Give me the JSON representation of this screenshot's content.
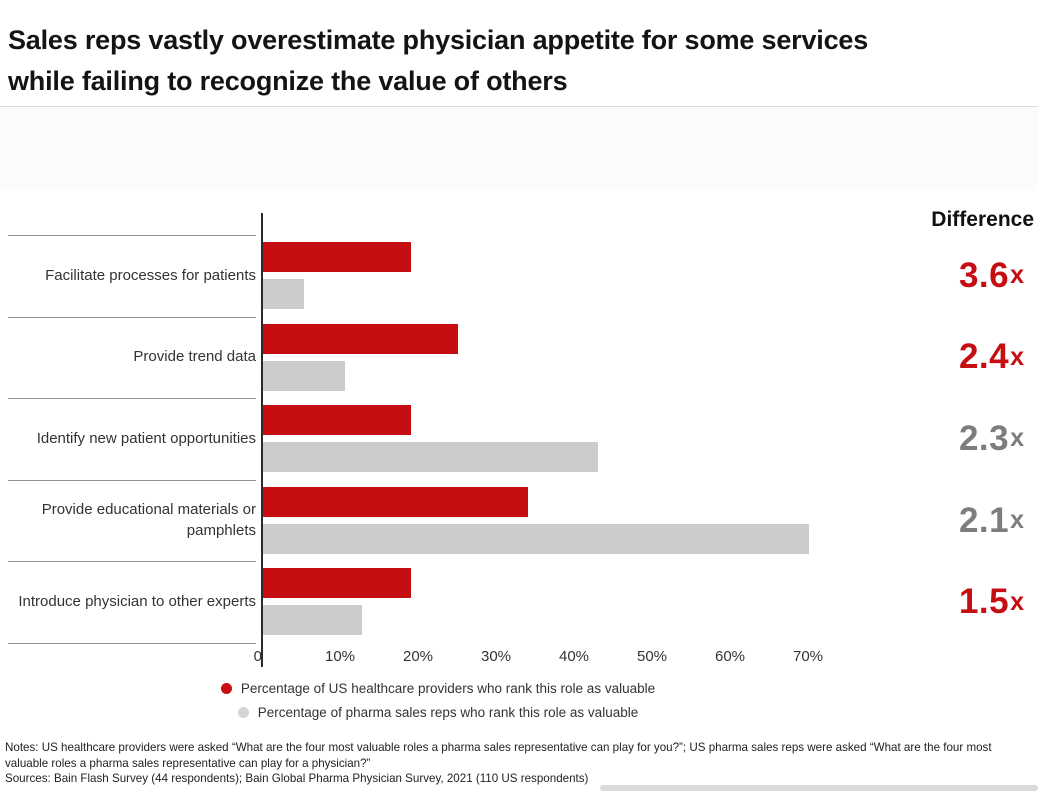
{
  "title": {
    "line1": "Sales reps vastly overestimate physician appetite for some services",
    "line2": "while failing to recognize the value of others"
  },
  "chart_data": {
    "type": "bar",
    "orientation": "horizontal",
    "title": "Sales reps vastly overestimate physician appetite for some services while failing to recognize the value of others",
    "categories": [
      "Facilitate processes for patients",
      "Provide trend data",
      "Identify new patient opportunities",
      "Provide educational materials or pamphlets",
      "Introduce physician to other experts"
    ],
    "series": [
      {
        "name": "Percentage of US healthcare providers who rank this role as valuable",
        "color": "#c60d12",
        "values": [
          19,
          25,
          19,
          34,
          19
        ]
      },
      {
        "name": "Percentage of pharma sales reps who rank this role as valuable",
        "color": "#cccccc",
        "values": [
          5.3,
          10.5,
          43,
          70,
          12.7
        ]
      }
    ],
    "diff_header": "Difference",
    "differences": [
      {
        "value": "3.6",
        "suffix": "x",
        "color": "red"
      },
      {
        "value": "2.4",
        "suffix": "x",
        "color": "red"
      },
      {
        "value": "2.3",
        "suffix": "x",
        "color": "gray"
      },
      {
        "value": "2.1",
        "suffix": "x",
        "color": "gray"
      },
      {
        "value": "1.5",
        "suffix": "x",
        "color": "red"
      }
    ],
    "x_ticks": [
      {
        "label": "0",
        "value": 0
      },
      {
        "label": "10%",
        "value": 10
      },
      {
        "label": "20%",
        "value": 20
      },
      {
        "label": "30%",
        "value": 30
      },
      {
        "label": "40%",
        "value": 40
      },
      {
        "label": "50%",
        "value": 50
      },
      {
        "label": "60%",
        "value": 60
      },
      {
        "label": "70%",
        "value": 70
      }
    ],
    "xlim": [
      0,
      72
    ],
    "grid": false,
    "legend_position": "bottom-center"
  },
  "palette": {
    "red": "#c60d12",
    "gray_bar": "#cccccc",
    "diff_gray": "#7d7d7d"
  },
  "notes": "Notes: US healthcare providers were asked “What are the four most valuable roles a pharma sales representative can play for you?”; US pharma sales reps were asked “What are the four most valuable roles a pharma sales representative can play for a physician?”",
  "sources": "Sources: Bain Flash Survey (44 respondents); Bain Global Pharma Physician Survey, 2021 (110 US respondents)"
}
